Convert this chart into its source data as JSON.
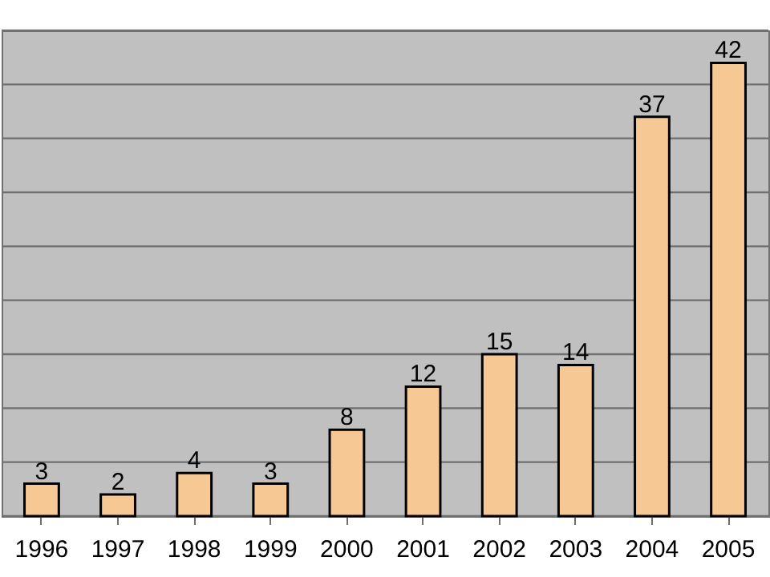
{
  "chart_data": {
    "type": "bar",
    "categories": [
      "1996",
      "1997",
      "1998",
      "1999",
      "2000",
      "2001",
      "2002",
      "2003",
      "2004",
      "2005"
    ],
    "values": [
      3,
      2,
      4,
      3,
      8,
      12,
      15,
      14,
      37,
      42
    ],
    "color": "#f5c894",
    "data_labels": true,
    "ylim": [
      0,
      45
    ],
    "yticks": [
      {
        "value": 0,
        "label": null
      },
      {
        "value": 5,
        "label": null
      },
      {
        "value": 10,
        "label": null
      },
      {
        "value": 15,
        "label": null
      },
      {
        "value": 20,
        "label": null
      },
      {
        "value": 25,
        "label": null
      },
      {
        "value": 30,
        "label": null
      },
      {
        "value": 35,
        "label": null
      },
      {
        "value": 40,
        "label": null
      },
      {
        "value": 45,
        "label": null
      }
    ],
    "grid": "y",
    "tick_labels": "x"
  }
}
